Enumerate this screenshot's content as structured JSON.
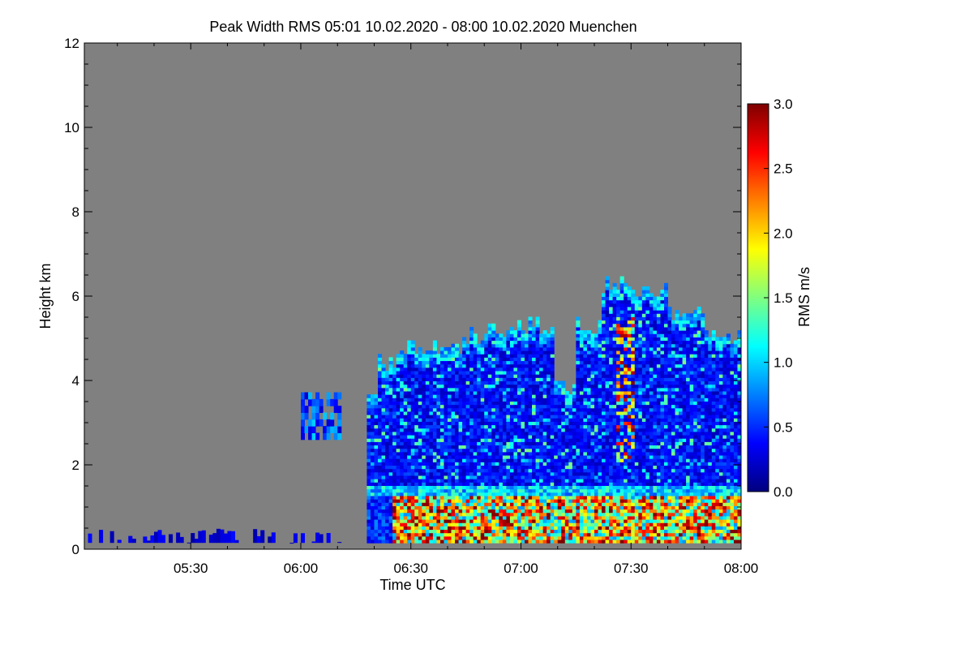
{
  "chart_data": {
    "type": "heatmap",
    "title": "Peak Width RMS   05:01 10.02.2020 - 08:00 10.02.2020 Muenchen",
    "xlabel": "Time UTC",
    "ylabel": "Height km",
    "x_range_minutes": [
      301,
      480
    ],
    "x_ticks": [
      {
        "label": "05:30",
        "value": 330
      },
      {
        "label": "06:00",
        "value": 360
      },
      {
        "label": "06:30",
        "value": 390
      },
      {
        "label": "07:00",
        "value": 420
      },
      {
        "label": "07:30",
        "value": 450
      },
      {
        "label": "08:00",
        "value": 480
      }
    ],
    "ylim": [
      0,
      12
    ],
    "y_ticks": [
      "0",
      "2",
      "4",
      "6",
      "8",
      "10",
      "12"
    ],
    "colorbar": {
      "label": "RMS m/s",
      "range": [
        0,
        3
      ],
      "ticks": [
        "0.0",
        "0.5",
        "1.0",
        "1.5",
        "2.0",
        "2.5",
        "3.0"
      ]
    },
    "background_color": "#808080",
    "colormap": "jet"
  }
}
